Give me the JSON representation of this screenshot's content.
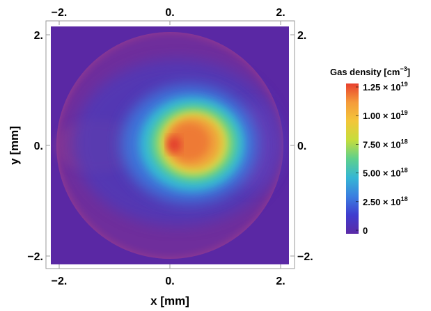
{
  "chart_data": {
    "type": "heatmap",
    "title": "",
    "xlabel": "x [mm]",
    "ylabel": "y [mm]",
    "xlim": [
      -2.2,
      2.2
    ],
    "ylim": [
      -2.2,
      2.2
    ],
    "x_ticks": [
      "−2.",
      "0.",
      "2."
    ],
    "y_ticks": [
      "2.",
      "0.",
      "−2."
    ],
    "x_tick_values": [
      -2,
      0,
      2
    ],
    "y_tick_values": [
      2,
      0,
      -2
    ],
    "grid": false,
    "legend": {
      "title_main": "Gas density [cm",
      "title_exp": "−3",
      "title_close": "]",
      "placement": "right",
      "range": [
        0,
        1.25e+19
      ],
      "ticks": [
        {
          "value": 1.25e+19,
          "mantissa": "1.25",
          "exp": "19"
        },
        {
          "value": 1e+19,
          "mantissa": "1.00",
          "exp": "19"
        },
        {
          "value": 7.5e+18,
          "mantissa": "7.50",
          "exp": "18"
        },
        {
          "value": 5e+18,
          "mantissa": "5.00",
          "exp": "18"
        },
        {
          "value": 2.5e+18,
          "mantissa": "2.50",
          "exp": "18"
        },
        {
          "value": 0,
          "mantissa": "0",
          "exp": ""
        }
      ],
      "colors": [
        "#5b2aa6",
        "#3f3ccf",
        "#3b7fe0",
        "#35b7d4",
        "#5fd08c",
        "#c6dd3c",
        "#f3c63a",
        "#f59b3a",
        "#e8402e"
      ]
    },
    "features": {
      "circle_radius_mm": 2.1,
      "peak_center_mm": [
        0.4,
        0.1
      ],
      "peak_value": 1.2e+19,
      "background_inside_circle": 1e+18,
      "background_outside_circle": 3e+17
    }
  }
}
